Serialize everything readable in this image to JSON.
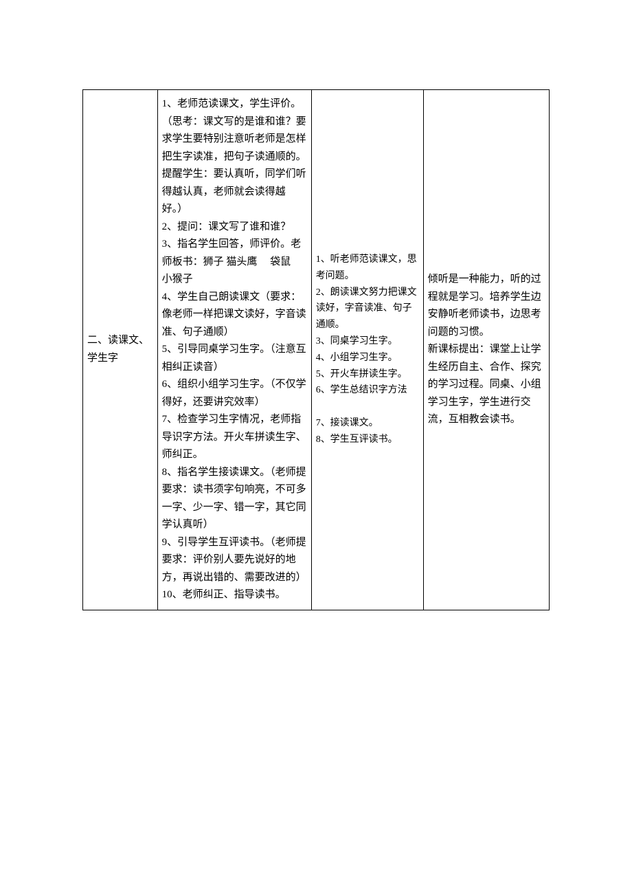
{
  "table": {
    "row": {
      "col1": "二、读课文、学生字",
      "col2": "1、老师范读课文，学生评价。（思考：课文写的是谁和谁？要求学生要特别注意听老师是怎样把生字读准，把句子读通顺的。提醒学生：要认真听，同学们听得越认真，老师就会读得越好。）\n 2、提问：课文写了谁和谁？\n 3、指名学生回答，师评价。老师板书：狮子 猫头鹰　 袋鼠　 小猴子\n 4、学生自己朗读课文（要求：像老师一样把课文读好，字音读准、句子通顺）\n 5、引导同桌学习生字。（注意互相纠正读音）\n 6、组织小组学习生字。（不仅学得好，还要讲究效率）\n 7、检查学习生字情况，老师指导识字方法。开火车拼读生字、师纠正。\n 8、指名学生接读课文。（老师提要求：读书须字句响亮，不可多一字、少一字、错一字，其它同学认真听）\n 9、引导学生互评读书。（老师提要求：评价别人要先说好的地方，再说出错的、需要改进的）\n 10、老师纠正、指导读书。",
      "col3": "1、听老师范读课文，思考问题。\n 2、朗读课文努力把课文读好，字音读准、句子通顺。\n3、同桌学习生字。\n4、小组学习生字。\n5、开火车拼读生字。\n6、学生总结识字方法\n\n7、接读课文。\n8、学生互评读书。",
      "col4": "倾听是一种能力，听的过程就是学习。培养学生边安静听老师读书，边思考问题的习惯。\n新课标提出：课堂上让学生经历自主、合作、探究的学习过程。同桌、小组学习生字，学生进行交流，互相教会读书。"
    }
  },
  "styling": {
    "border_color": "#000000",
    "background_color": "#ffffff",
    "text_color": "#000000",
    "font_family": "SimSun",
    "body_fontsize": 15,
    "small_fontsize": 14,
    "line_height": 1.7,
    "column_widths": [
      "16%",
      "33%",
      "24%",
      "27%"
    ],
    "padding": "8px 6px"
  }
}
